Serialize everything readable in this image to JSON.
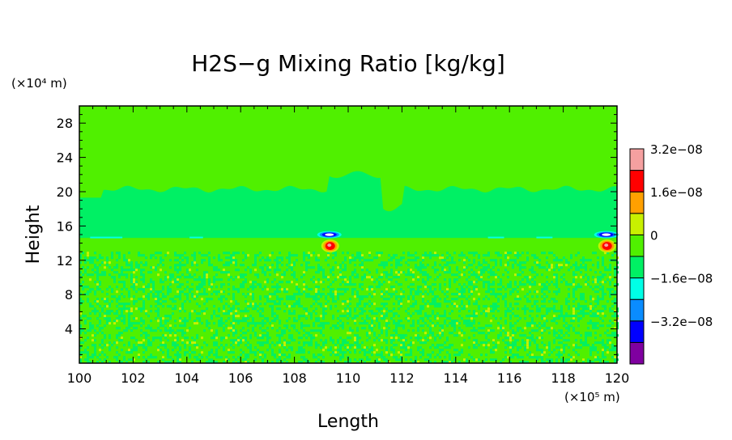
{
  "chart_data": {
    "type": "heatmap",
    "title": "H2S−g Mixing Ratio [kg/kg]",
    "xlabel": "Length",
    "ylabel": "Height",
    "x_unit": "(×10⁵ m)",
    "y_unit": "(×10⁴ m)",
    "xlim": [
      100,
      120
    ],
    "ylim": [
      0,
      30
    ],
    "x_ticks": [
      100,
      102,
      104,
      106,
      108,
      110,
      112,
      114,
      116,
      118,
      120
    ],
    "y_ticks": [
      4,
      8,
      12,
      16,
      20,
      24,
      28
    ],
    "colorbar": {
      "levels": [
        {
          "color": "#7f00a0",
          "label": ""
        },
        {
          "color": "#0000ff",
          "label": "−3.2e−08"
        },
        {
          "color": "#0a8cff",
          "label": ""
        },
        {
          "color": "#00ffe6",
          "label": "−1.6e−08"
        },
        {
          "color": "#00f064",
          "label": ""
        },
        {
          "color": "#50f000",
          "label": "0"
        },
        {
          "color": "#c8f000",
          "label": ""
        },
        {
          "color": "#ffa000",
          "label": "1.6e−08"
        },
        {
          "color": "#ff0000",
          "label": ""
        },
        {
          "color": "#f5a0a0",
          "label": "3.2e−08"
        }
      ]
    },
    "regions": [
      {
        "x": [
          100,
          120
        ],
        "y": [
          21.5,
          30
        ],
        "level": 5,
        "note": "upper uniform field"
      },
      {
        "x": [
          100,
          120
        ],
        "y": [
          14.5,
          20
        ],
        "level": 4,
        "note": "middle band"
      },
      {
        "x": [
          100,
          120
        ],
        "y": [
          0,
          13
        ],
        "level": 5,
        "note": "lower speckled field"
      }
    ],
    "features": [
      {
        "x": 109.3,
        "y": 14.8,
        "type": "dipole"
      },
      {
        "x": 119.6,
        "y": 14.8,
        "type": "dipole"
      }
    ]
  }
}
